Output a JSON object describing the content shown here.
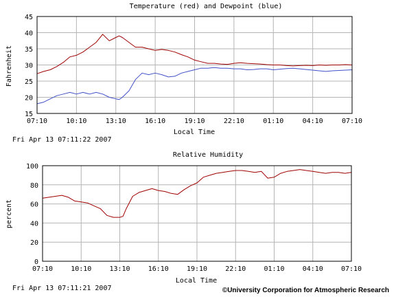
{
  "chart_data": [
    {
      "type": "line",
      "title": "Temperature (red) and Dewpoint (blue)",
      "xlabel": "Local Time",
      "ylabel": "Fahrenheit",
      "ylim": [
        15,
        45
      ],
      "yticks": [
        "15",
        "20",
        "25",
        "30",
        "35",
        "40",
        "45"
      ],
      "xticks": [
        "07:10",
        "10:10",
        "13:10",
        "16:10",
        "19:10",
        "22:10",
        "01:10",
        "04:10",
        "07:10"
      ],
      "x_hours": [
        0,
        0.5,
        1,
        1.5,
        2,
        2.5,
        3,
        3.5,
        4,
        4.5,
        5,
        5.5,
        6,
        6.25,
        6.5,
        7,
        7.5,
        8,
        8.5,
        9,
        9.5,
        10,
        10.5,
        11,
        11.5,
        12,
        12.5,
        13,
        13.5,
        14,
        14.5,
        15,
        15.5,
        16,
        16.5,
        17,
        17.5,
        18,
        18.5,
        19,
        19.5,
        20,
        20.5,
        21,
        21.5,
        22,
        22.5,
        23,
        23.5,
        24
      ],
      "grid": true,
      "timestamp": "Fri Apr 13 07:11:22 2007",
      "series": [
        {
          "color": "#a00000",
          "values": [
            27.3,
            28.0,
            28.5,
            29.5,
            30.8,
            32.5,
            33.0,
            34.0,
            35.5,
            37.0,
            39.5,
            37.5,
            38.5,
            39.0,
            38.5,
            37.0,
            35.5,
            35.5,
            35.0,
            34.5,
            34.8,
            34.5,
            34.0,
            33.2,
            32.5,
            31.5,
            31.0,
            30.5,
            30.5,
            30.3,
            30.2,
            30.5,
            30.7,
            30.5,
            30.4,
            30.3,
            30.1,
            30.0,
            30.0,
            29.8,
            29.7,
            29.8,
            29.9,
            29.8,
            30.0,
            29.9,
            30.0,
            30.0,
            30.1,
            30.0
          ]
        },
        {
          "color": "#4050c8",
          "values": [
            18.0,
            18.5,
            19.5,
            20.5,
            21.0,
            21.5,
            21.0,
            21.5,
            21.0,
            21.5,
            21.0,
            20.0,
            19.5,
            19.3,
            20.0,
            22.0,
            25.5,
            27.5,
            27.0,
            27.5,
            27.0,
            26.3,
            26.5,
            27.5,
            28.0,
            28.5,
            29.0,
            29.0,
            29.2,
            29.0,
            29.0,
            28.8,
            28.8,
            28.5,
            28.6,
            28.8,
            28.8,
            28.5,
            28.7,
            28.9,
            29.0,
            28.8,
            28.6,
            28.4,
            28.2,
            28.0,
            28.2,
            28.3,
            28.4,
            28.5
          ]
        }
      ]
    },
    {
      "type": "line",
      "title": "Relative Humidity",
      "xlabel": "Local Time",
      "ylabel": "percent",
      "ylim": [
        0,
        100
      ],
      "yticks": [
        "0",
        "20",
        "40",
        "60",
        "80",
        "100"
      ],
      "xticks": [
        "07:10",
        "10:10",
        "13:10",
        "16:10",
        "19:10",
        "22:10",
        "01:10",
        "04:10",
        "07:10"
      ],
      "x_hours": [
        0,
        0.5,
        1,
        1.5,
        2,
        2.5,
        3,
        3.5,
        4,
        4.5,
        5,
        5.5,
        6,
        6.25,
        6.5,
        7,
        7.5,
        8,
        8.5,
        9,
        9.5,
        10,
        10.5,
        11,
        11.5,
        12,
        12.5,
        13,
        13.5,
        14,
        14.5,
        15,
        15.5,
        16,
        16.5,
        17,
        17.5,
        18,
        18.5,
        19,
        19.5,
        20,
        20.5,
        21,
        21.5,
        22,
        22.5,
        23,
        23.5,
        24
      ],
      "grid": true,
      "timestamp": "Fri Apr 13 07:11:21 2007",
      "series": [
        {
          "color": "#a00000",
          "values": [
            66.0,
            67.0,
            68.0,
            69.0,
            67.0,
            63.0,
            62.0,
            61.0,
            58.0,
            55.0,
            48.0,
            46.0,
            46.0,
            47.0,
            55.0,
            68.0,
            72.0,
            74.0,
            76.0,
            74.0,
            73.0,
            71.0,
            70.0,
            75.0,
            79.0,
            82.0,
            88.0,
            90.0,
            92.0,
            93.0,
            94.0,
            95.0,
            95.0,
            94.0,
            93.0,
            94.0,
            87.0,
            88.0,
            92.0,
            94.0,
            95.0,
            96.0,
            95.0,
            94.0,
            93.0,
            92.0,
            93.0,
            93.0,
            92.0,
            93.0
          ]
        }
      ]
    }
  ],
  "credit": "©University Corporation for Atmospheric Research"
}
